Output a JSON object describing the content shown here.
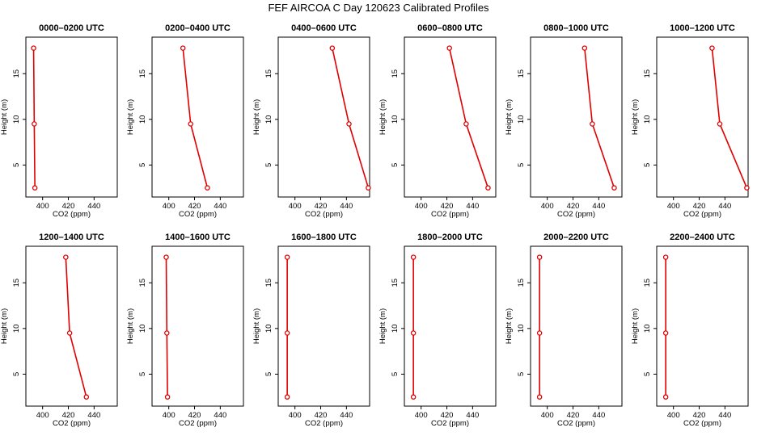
{
  "title": "FEF AIRCOA C  Day 120623  Calibrated Profiles",
  "colors": {
    "series": "#e00000",
    "axis": "#000000",
    "background": "#ffffff"
  },
  "chart_data": [
    {
      "type": "line",
      "title": "0000–0200 UTC",
      "xlabel": "CO2 (ppm)",
      "ylabel": "Height (m)",
      "xlim": [
        387,
        458
      ],
      "ylim": [
        1.5,
        19
      ],
      "xticks": [
        400,
        420,
        440
      ],
      "yticks": [
        5,
        10,
        15
      ],
      "x": [
        393,
        393.5,
        394
      ],
      "y": [
        17.8,
        9.5,
        2.5
      ]
    },
    {
      "type": "line",
      "title": "0200–0400 UTC",
      "xlabel": "CO2 (ppm)",
      "ylabel": "Height (m)",
      "xlim": [
        387,
        458
      ],
      "ylim": [
        1.5,
        19
      ],
      "xticks": [
        400,
        420,
        440
      ],
      "yticks": [
        5,
        10,
        15
      ],
      "x": [
        411,
        417,
        430
      ],
      "y": [
        17.8,
        9.5,
        2.5
      ]
    },
    {
      "type": "line",
      "title": "0400–0600 UTC",
      "xlabel": "CO2 (ppm)",
      "ylabel": "Height (m)",
      "xlim": [
        387,
        458
      ],
      "ylim": [
        1.5,
        19
      ],
      "xticks": [
        400,
        420,
        440
      ],
      "yticks": [
        5,
        10,
        15
      ],
      "x": [
        429,
        442,
        457
      ],
      "y": [
        17.8,
        9.5,
        2.5
      ]
    },
    {
      "type": "line",
      "title": "0600–0800 UTC",
      "xlabel": "CO2 (ppm)",
      "ylabel": "Height (m)",
      "xlim": [
        387,
        458
      ],
      "ylim": [
        1.5,
        19
      ],
      "xticks": [
        400,
        420,
        440
      ],
      "yticks": [
        5,
        10,
        15
      ],
      "x": [
        422,
        435,
        452
      ],
      "y": [
        17.8,
        9.5,
        2.5
      ]
    },
    {
      "type": "line",
      "title": "0800–1000 UTC",
      "xlabel": "CO2 (ppm)",
      "ylabel": "Height (m)",
      "xlim": [
        387,
        458
      ],
      "ylim": [
        1.5,
        19
      ],
      "xticks": [
        400,
        420,
        440
      ],
      "yticks": [
        5,
        10,
        15
      ],
      "x": [
        429,
        435,
        452
      ],
      "y": [
        17.8,
        9.5,
        2.5
      ]
    },
    {
      "type": "line",
      "title": "1000–1200 UTC",
      "xlabel": "CO2 (ppm)",
      "ylabel": "Height (m)",
      "xlim": [
        387,
        458
      ],
      "ylim": [
        1.5,
        19
      ],
      "xticks": [
        400,
        420,
        440
      ],
      "yticks": [
        5,
        10,
        15
      ],
      "x": [
        430,
        436,
        457
      ],
      "y": [
        17.8,
        9.5,
        2.5
      ]
    },
    {
      "type": "line",
      "title": "1200–1400 UTC",
      "xlabel": "CO2 (ppm)",
      "ylabel": "Height (m)",
      "xlim": [
        387,
        458
      ],
      "ylim": [
        1.5,
        19
      ],
      "xticks": [
        400,
        420,
        440
      ],
      "yticks": [
        5,
        10,
        15
      ],
      "x": [
        418,
        421,
        434
      ],
      "y": [
        17.8,
        9.5,
        2.5
      ]
    },
    {
      "type": "line",
      "title": "1400–1600 UTC",
      "xlabel": "CO2 (ppm)",
      "ylabel": "Height (m)",
      "xlim": [
        387,
        458
      ],
      "ylim": [
        1.5,
        19
      ],
      "xticks": [
        400,
        420,
        440
      ],
      "yticks": [
        5,
        10,
        15
      ],
      "x": [
        398,
        398.5,
        399
      ],
      "y": [
        17.8,
        9.5,
        2.5
      ]
    },
    {
      "type": "line",
      "title": "1600–1800 UTC",
      "xlabel": "CO2 (ppm)",
      "ylabel": "Height (m)",
      "xlim": [
        387,
        458
      ],
      "ylim": [
        1.5,
        19
      ],
      "xticks": [
        400,
        420,
        440
      ],
      "yticks": [
        5,
        10,
        15
      ],
      "x": [
        394,
        394,
        394
      ],
      "y": [
        17.8,
        9.5,
        2.5
      ]
    },
    {
      "type": "line",
      "title": "1800–2000 UTC",
      "xlabel": "CO2 (ppm)",
      "ylabel": "Height (m)",
      "xlim": [
        387,
        458
      ],
      "ylim": [
        1.5,
        19
      ],
      "xticks": [
        400,
        420,
        440
      ],
      "yticks": [
        5,
        10,
        15
      ],
      "x": [
        394,
        394,
        394
      ],
      "y": [
        17.8,
        9.5,
        2.5
      ]
    },
    {
      "type": "line",
      "title": "2000–2200 UTC",
      "xlabel": "CO2 (ppm)",
      "ylabel": "Height (m)",
      "xlim": [
        387,
        458
      ],
      "ylim": [
        1.5,
        19
      ],
      "xticks": [
        400,
        420,
        440
      ],
      "yticks": [
        5,
        10,
        15
      ],
      "x": [
        394,
        394,
        394
      ],
      "y": [
        17.8,
        9.5,
        2.5
      ]
    },
    {
      "type": "line",
      "title": "2200–2400 UTC",
      "xlabel": "CO2 (ppm)",
      "ylabel": "Height (m)",
      "xlim": [
        387,
        458
      ],
      "ylim": [
        1.5,
        19
      ],
      "xticks": [
        400,
        420,
        440
      ],
      "yticks": [
        5,
        10,
        15
      ],
      "x": [
        394,
        394,
        394
      ],
      "y": [
        17.8,
        9.5,
        2.5
      ]
    }
  ]
}
